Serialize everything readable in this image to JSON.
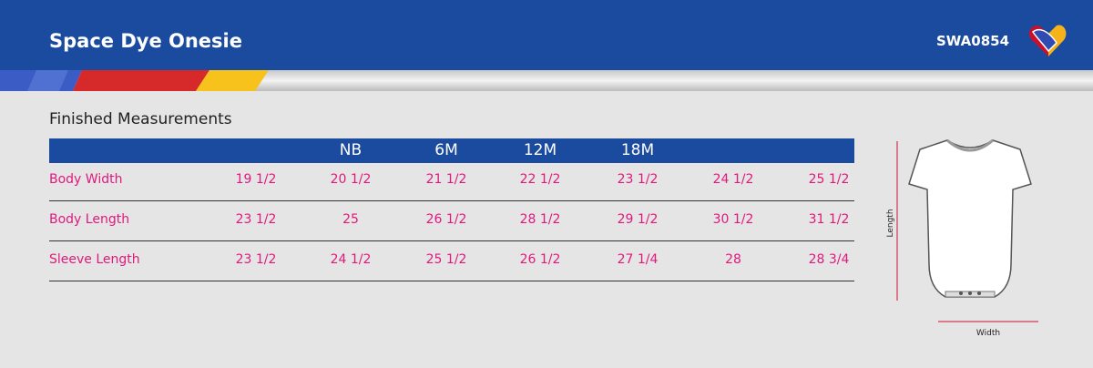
{
  "header": {
    "title": "Space Dye Onesie",
    "code": "SWA0854"
  },
  "section_title": "Finished Measurements",
  "table": {
    "columns": [
      null,
      "NB",
      "6M",
      "12M",
      "18M",
      null,
      null
    ],
    "rows": [
      {
        "label": "Body Width",
        "values": [
          "19 1/2",
          "20 1/2",
          "21 1/2",
          "22 1/2",
          "23 1/2",
          "24 1/2",
          "25 1/2"
        ]
      },
      {
        "label": "Body Length",
        "values": [
          "23 1/2",
          "25",
          "26 1/2",
          "28 1/2",
          "29 1/2",
          "30 1/2",
          "31 1/2"
        ]
      },
      {
        "label": "Sleeve Length",
        "values": [
          "23 1/2",
          "24 1/2",
          "25 1/2",
          "26 1/2",
          "27 1/4",
          "28",
          "28 3/4"
        ]
      }
    ]
  },
  "diagram": {
    "length_label": "Length",
    "width_label": "Width"
  }
}
